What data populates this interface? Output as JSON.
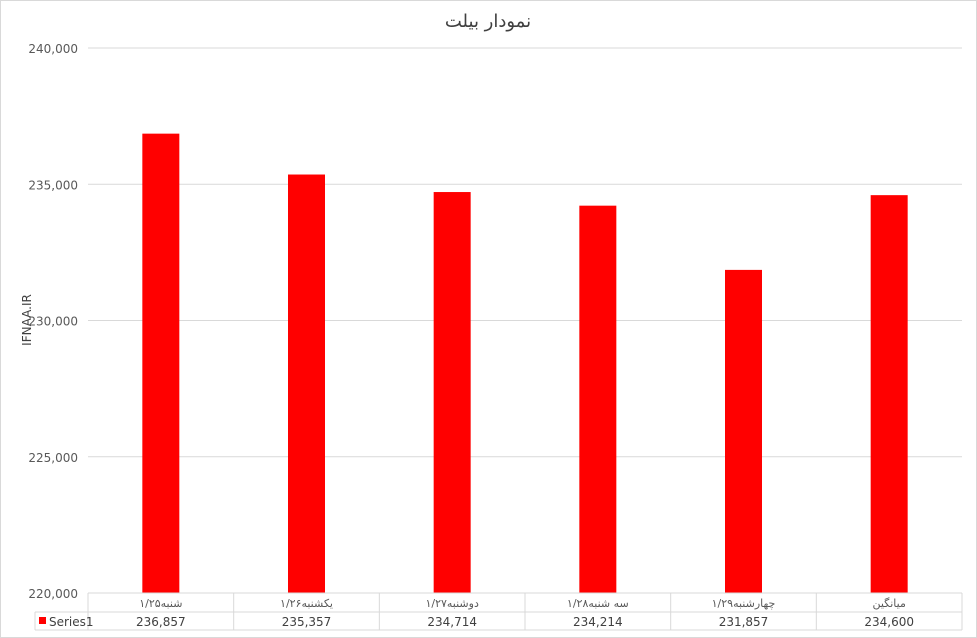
{
  "chart_data": {
    "type": "bar",
    "title": "نمودار بیلت",
    "xlabel": "",
    "ylabel": "IFNAA.IR",
    "categories": [
      "شنبه۱/۲۵",
      "یکشنبه۱/۲۶",
      "دوشنبه۱/۲۷",
      "سه شنبه۱/۲۸",
      "چهارشنبه۱/۲۹",
      "میانگین"
    ],
    "series": [
      {
        "name": "Series1",
        "values": [
          236857,
          235357,
          234714,
          234214,
          231857,
          234600
        ],
        "labels": [
          "236,857",
          "235,357",
          "234,714",
          "234,214",
          "231,857",
          "234,600"
        ]
      }
    ],
    "ylim": [
      220000,
      240000
    ],
    "yticks": [
      "220,000",
      "225,000",
      "230,000",
      "235,000",
      "240,000"
    ],
    "grid": true,
    "legend": "data-table",
    "bar_color": "#FF0000"
  }
}
